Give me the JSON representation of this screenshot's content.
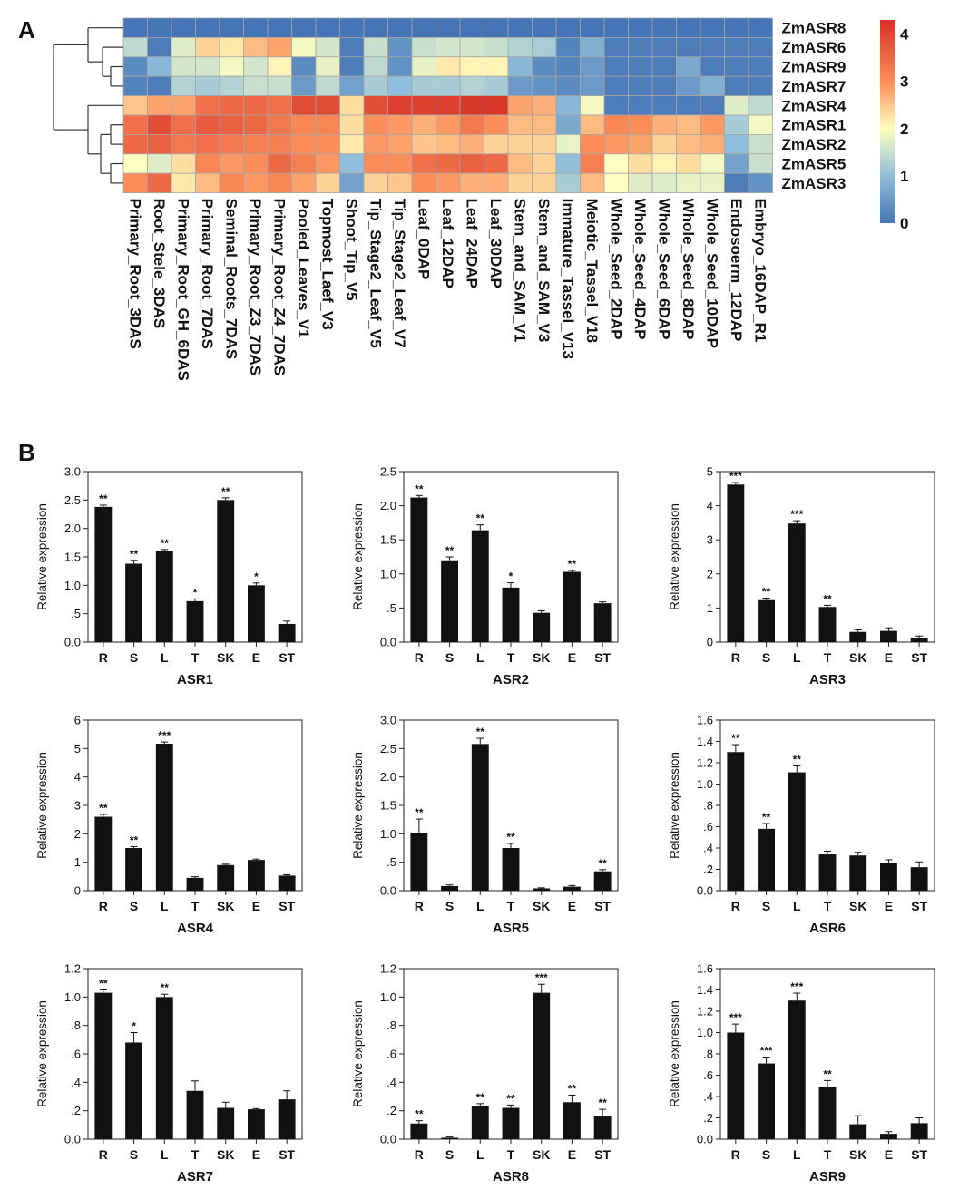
{
  "panel_labels": {
    "a": "A",
    "b": "B"
  },
  "chart_data": [
    {
      "type": "heatmap",
      "title": "",
      "rows": [
        "ZmASR8",
        "ZmASR6",
        "ZmASR9",
        "ZmASR7",
        "ZmASR4",
        "ZmASR1",
        "ZmASR2",
        "ZmASR5",
        "ZmASR3"
      ],
      "columns": [
        "Primary_Root_3DAS",
        "Root_Stele_3DAS",
        "Primary_Root_GH_6DAS",
        "Primary_Root_7DAS",
        "Seminal_Roots_7DAS",
        "Primary_Root_Z3_7DAS",
        "Primary_Root_Z4_7DAS",
        "Pooled_Leaves_V1",
        "Topmost_Laef_V3",
        "Shoot_Tip_V5",
        "Tip_Stage2_Leaf_V5",
        "Tip_Stage2_Leaf_V7",
        "Leaf_0DAP",
        "Leaf_12DAP",
        "Leaf_24DAP",
        "Leaf_30DAP",
        "Stem_and_SAM_V1",
        "Stem_and_SAM_V3",
        "Immature_Tassel_V13",
        "Meiotic_Tassel_V18",
        "Whole_Seed_2DAP",
        "Whole_Seed_4DAP",
        "Whole_Seed_6DAP",
        "Whole_Seed_8DAP",
        "Whole_Seed_10DAP",
        "Endosoerm_12DAP",
        "Embryo_16DAP_R1"
      ],
      "values": [
        [
          0,
          0,
          0,
          0,
          0,
          0,
          0,
          0,
          0,
          0,
          0,
          0,
          0,
          0,
          0,
          0,
          0,
          0,
          0,
          0,
          0,
          0,
          0,
          0,
          0,
          0,
          0
        ],
        [
          1.4,
          0.1,
          1.7,
          2.4,
          2.2,
          2.6,
          2.8,
          1.9,
          1.6,
          0.1,
          1.5,
          0.4,
          1.5,
          1.6,
          1.6,
          1.5,
          1.3,
          1.2,
          0.2,
          0.8,
          0.1,
          0.1,
          0.1,
          0.1,
          0.1,
          0.1,
          0.1
        ],
        [
          0.3,
          0.9,
          1.6,
          1.6,
          1.9,
          1.6,
          2.1,
          0.3,
          1.8,
          0.1,
          1.4,
          0.4,
          1.8,
          2.2,
          2.1,
          2.1,
          0.9,
          0.3,
          0.2,
          0.5,
          0.1,
          0.1,
          0.1,
          0.7,
          0.1,
          0.1,
          0.1
        ],
        [
          0.2,
          0.1,
          1.3,
          1.2,
          1.3,
          1.5,
          1.5,
          0.5,
          1.4,
          0.6,
          1.2,
          1.0,
          1.2,
          1.2,
          1.3,
          1.2,
          0.5,
          0.4,
          0.3,
          0.5,
          0.1,
          0.1,
          0.1,
          0.5,
          0.8,
          0.1,
          0.1
        ],
        [
          2.5,
          2.8,
          2.8,
          3.4,
          3.5,
          3.5,
          3.4,
          3.9,
          3.9,
          2.3,
          3.9,
          4.1,
          4.1,
          4.1,
          4.2,
          4.2,
          2.8,
          2.7,
          0.9,
          1.9,
          0.1,
          0.1,
          0.1,
          0.1,
          0.1,
          1.7,
          1.4
        ],
        [
          3.4,
          3.9,
          3.4,
          3.7,
          3.6,
          3.5,
          3.3,
          3.1,
          3.1,
          2.3,
          3.0,
          2.9,
          2.7,
          2.9,
          3.3,
          3.0,
          2.6,
          2.6,
          0.7,
          2.6,
          3.1,
          3.0,
          2.7,
          2.6,
          2.9,
          1.2,
          1.9
        ],
        [
          3.5,
          3.6,
          3.3,
          3.4,
          3.3,
          3.2,
          3.2,
          3.0,
          3.0,
          2.2,
          2.9,
          2.8,
          2.5,
          2.6,
          2.7,
          2.4,
          2.4,
          2.4,
          1.8,
          3.0,
          2.9,
          2.8,
          2.4,
          2.6,
          2.7,
          1.0,
          1.5
        ],
        [
          2.0,
          1.7,
          2.3,
          3.1,
          2.9,
          3.0,
          3.5,
          3.2,
          2.9,
          1.0,
          3.0,
          3.0,
          3.4,
          3.5,
          3.6,
          3.5,
          2.6,
          2.4,
          1.0,
          3.2,
          2.0,
          2.3,
          2.1,
          2.3,
          1.9,
          0.6,
          1.5
        ],
        [
          3.0,
          3.5,
          2.2,
          2.6,
          3.1,
          2.9,
          3.1,
          2.8,
          2.4,
          0.6,
          2.4,
          2.5,
          3.0,
          2.9,
          2.7,
          2.7,
          2.4,
          2.4,
          1.2,
          2.6,
          2.0,
          1.7,
          1.7,
          1.8,
          1.8,
          0.1,
          0.4
        ]
      ],
      "colorbar": {
        "range": [
          0,
          4.3
        ],
        "ticks": [
          "0",
          "1",
          "2",
          "3",
          "4"
        ],
        "tick_values": [
          0,
          1,
          2,
          3,
          4
        ]
      },
      "dendrogram": "row clustering tree on left"
    },
    {
      "type": "bar",
      "title": "ASR1",
      "ylabel": "Relative expression",
      "categories": [
        "R",
        "S",
        "L",
        "T",
        "SK",
        "E",
        "ST"
      ],
      "values": [
        2.38,
        1.38,
        1.6,
        0.72,
        2.5,
        1.0,
        0.32
      ],
      "errors": [
        0.03,
        0.06,
        0.03,
        0.04,
        0.04,
        0.04,
        0.05
      ],
      "significance": [
        "**",
        "**",
        "**",
        "*",
        "**",
        "*",
        ""
      ],
      "ylim": [
        0,
        3.0
      ],
      "yticks": [
        0,
        0.5,
        1.0,
        1.5,
        2.0,
        2.5,
        3.0
      ],
      "ytick_labels": [
        "0.0",
        ".5",
        "1.0",
        "1.5",
        "2.0",
        "2.5",
        "3.0"
      ]
    },
    {
      "type": "bar",
      "title": "ASR2",
      "ylabel": "Relative expression",
      "categories": [
        "R",
        "S",
        "L",
        "T",
        "SK",
        "E",
        "ST"
      ],
      "values": [
        2.12,
        1.2,
        1.64,
        0.8,
        0.43,
        1.03,
        0.57
      ],
      "errors": [
        0.03,
        0.05,
        0.08,
        0.07,
        0.03,
        0.02,
        0.02
      ],
      "significance": [
        "**",
        "**",
        "**",
        "*",
        "",
        "**",
        ""
      ],
      "ylim": [
        0,
        2.5
      ],
      "yticks": [
        0,
        0.5,
        1.0,
        1.5,
        2.0,
        2.5
      ],
      "ytick_labels": [
        "0.0",
        ".5",
        "1.0",
        "1.5",
        "2.0",
        "2.5"
      ]
    },
    {
      "type": "bar",
      "title": "ASR3",
      "ylabel": "Relative expression",
      "categories": [
        "R",
        "S",
        "L",
        "T",
        "SK",
        "E",
        "ST"
      ],
      "values": [
        4.62,
        1.23,
        3.48,
        1.03,
        0.3,
        0.33,
        0.11
      ],
      "errors": [
        0.06,
        0.06,
        0.08,
        0.05,
        0.06,
        0.09,
        0.07
      ],
      "significance": [
        "***",
        "**",
        "***",
        "**",
        "",
        "",
        ""
      ],
      "ylim": [
        0,
        5
      ],
      "yticks": [
        0,
        1,
        2,
        3,
        4,
        5
      ],
      "ytick_labels": [
        "0",
        "1",
        "2",
        "3",
        "4",
        "5"
      ]
    },
    {
      "type": "bar",
      "title": "ASR4",
      "ylabel": "Relative expression",
      "categories": [
        "R",
        "S",
        "L",
        "T",
        "SK",
        "E",
        "ST"
      ],
      "values": [
        2.6,
        1.5,
        5.17,
        0.45,
        0.9,
        1.08,
        0.53
      ],
      "errors": [
        0.08,
        0.05,
        0.06,
        0.04,
        0.03,
        0.03,
        0.03
      ],
      "significance": [
        "**",
        "**",
        "***",
        "",
        "",
        "",
        ""
      ],
      "ylim": [
        0,
        6
      ],
      "yticks": [
        0,
        1,
        2,
        3,
        4,
        5,
        6
      ],
      "ytick_labels": [
        "0",
        "1",
        "2",
        "3",
        "4",
        "5",
        "6"
      ]
    },
    {
      "type": "bar",
      "title": "ASR5",
      "ylabel": "Relative expression",
      "categories": [
        "R",
        "S",
        "L",
        "T",
        "SK",
        "E",
        "ST"
      ],
      "values": [
        1.02,
        0.08,
        2.58,
        0.75,
        0.04,
        0.07,
        0.34
      ],
      "errors": [
        0.24,
        0.02,
        0.1,
        0.08,
        0.01,
        0.02,
        0.03
      ],
      "significance": [
        "**",
        "",
        "**",
        "**",
        "",
        "",
        "**"
      ],
      "ylim": [
        0,
        3.0
      ],
      "yticks": [
        0,
        0.5,
        1.0,
        1.5,
        2.0,
        2.5,
        3.0
      ],
      "ytick_labels": [
        "0.0",
        ".5",
        "1.0",
        "1.5",
        "2.0",
        "2.5",
        "3.0"
      ]
    },
    {
      "type": "bar",
      "title": "ASR6",
      "ylabel": "Relative expression",
      "categories": [
        "R",
        "S",
        "L",
        "T",
        "SK",
        "E",
        "ST"
      ],
      "values": [
        1.3,
        0.58,
        1.11,
        0.34,
        0.33,
        0.26,
        0.22
      ],
      "errors": [
        0.07,
        0.05,
        0.06,
        0.03,
        0.03,
        0.03,
        0.05
      ],
      "significance": [
        "**",
        "**",
        "**",
        "",
        "",
        "",
        ""
      ],
      "ylim": [
        0,
        1.6
      ],
      "yticks": [
        0,
        0.2,
        0.4,
        0.6,
        0.8,
        1.0,
        1.2,
        1.4,
        1.6
      ],
      "ytick_labels": [
        "0.0",
        ".2",
        ".4",
        ".6",
        ".8",
        "1.0",
        "1.2",
        "1.4",
        "1.6"
      ]
    },
    {
      "type": "bar",
      "title": "ASR7",
      "ylabel": "Relative expression",
      "categories": [
        "R",
        "S",
        "L",
        "T",
        "SK",
        "E",
        "ST"
      ],
      "values": [
        1.03,
        0.68,
        1.0,
        0.34,
        0.22,
        0.21,
        0.28
      ],
      "errors": [
        0.02,
        0.07,
        0.02,
        0.07,
        0.04,
        0.005,
        0.06
      ],
      "significance": [
        "**",
        "*",
        "**",
        "",
        "",
        "",
        ""
      ],
      "ylim": [
        0,
        1.2
      ],
      "yticks": [
        0,
        0.2,
        0.4,
        0.6,
        0.8,
        1.0,
        1.2
      ],
      "ytick_labels": [
        "0.0",
        ".2",
        ".4",
        ".6",
        ".8",
        "1.0",
        "1.2"
      ]
    },
    {
      "type": "bar",
      "title": "ASR8",
      "ylabel": "Relative expression",
      "categories": [
        "R",
        "S",
        "L",
        "T",
        "SK",
        "E",
        "ST"
      ],
      "values": [
        0.11,
        0.01,
        0.23,
        0.22,
        1.03,
        0.26,
        0.16
      ],
      "errors": [
        0.02,
        0.005,
        0.02,
        0.02,
        0.06,
        0.05,
        0.05
      ],
      "significance": [
        "**",
        "",
        "**",
        "**",
        "***",
        "**",
        "**"
      ],
      "ylim": [
        0,
        1.2
      ],
      "yticks": [
        0,
        0.2,
        0.4,
        0.6,
        0.8,
        1.0,
        1.2
      ],
      "ytick_labels": [
        "0.0",
        ".2",
        ".4",
        ".6",
        ".8",
        "1.0",
        "1.2"
      ]
    },
    {
      "type": "bar",
      "title": "ASR9",
      "ylabel": "Relative expression",
      "categories": [
        "R",
        "S",
        "L",
        "T",
        "SK",
        "E",
        "ST"
      ],
      "values": [
        1.0,
        0.71,
        1.3,
        0.49,
        0.14,
        0.05,
        0.15
      ],
      "errors": [
        0.08,
        0.06,
        0.07,
        0.06,
        0.08,
        0.02,
        0.05
      ],
      "significance": [
        "***",
        "***",
        "***",
        "**",
        "",
        "",
        ""
      ],
      "ylim": [
        0,
        1.6
      ],
      "yticks": [
        0,
        0.2,
        0.4,
        0.6,
        0.8,
        1.0,
        1.2,
        1.4,
        1.6
      ],
      "ytick_labels": [
        "0.0",
        ".2",
        ".4",
        ".6",
        ".8",
        "1.0",
        "1.2",
        "1.4",
        "1.6"
      ]
    }
  ]
}
